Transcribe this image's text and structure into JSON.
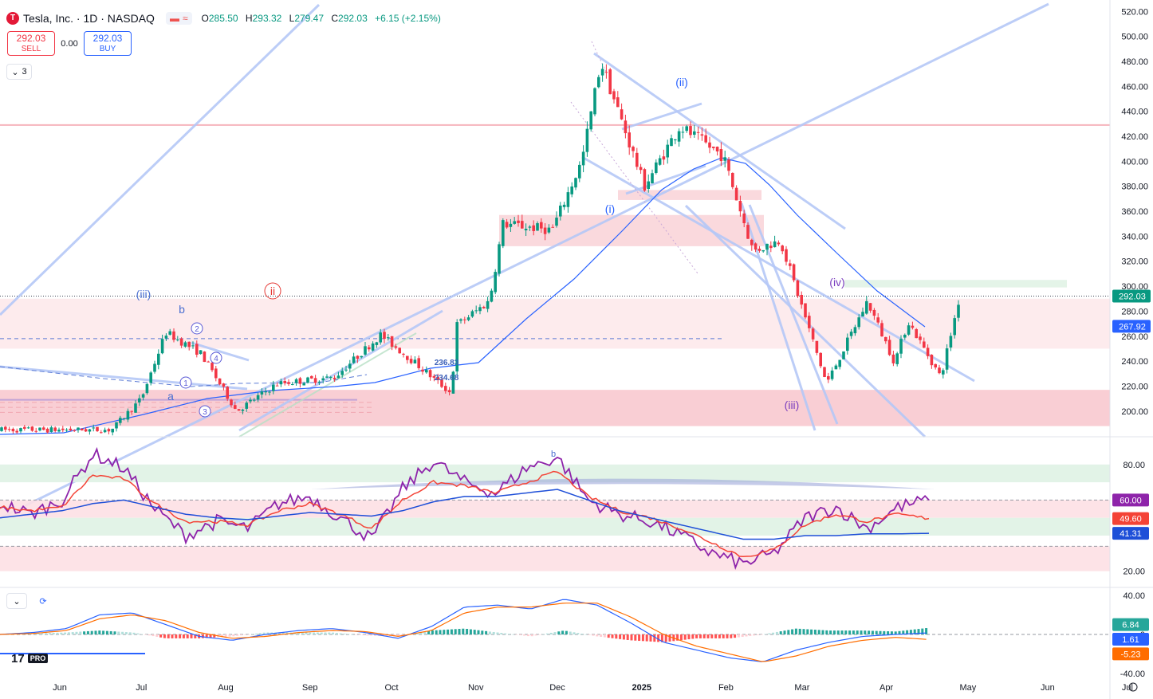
{
  "header": {
    "symbol": "Tesla, Inc. · 1D · NASDAQ",
    "logo_glyph": "T",
    "logo_color": "#e31937",
    "open_label": "O",
    "open": "285.50",
    "high_label": "H",
    "high": "293.32",
    "low_label": "L",
    "low": "279.47",
    "close_label": "C",
    "close": "292.03",
    "change": "+6.15 (+2.15%)"
  },
  "trade": {
    "sell_price": "292.03",
    "sell_label": "SELL",
    "spread": "0.00",
    "buy_price": "292.03",
    "buy_label": "BUY"
  },
  "indicators_toggle": {
    "count": "3",
    "icon": "chevron-down-icon"
  },
  "branding": {
    "logo": "17",
    "badge": "PRO"
  },
  "colors": {
    "up": "#089981",
    "down": "#f23645",
    "ma": "#2962ff",
    "trendline": "#b5c8f7",
    "demand_zone": "#f8c6cc",
    "rsi": "#8e24aa",
    "rsi_ma": "#f44336",
    "rsi_ma2": "#1e4fd8",
    "macd": "#2962ff",
    "signal": "#ff6d00"
  },
  "chart_data": [
    {
      "type": "candlestick",
      "title": "Tesla, Inc. · 1D · NASDAQ",
      "x_tick_labels": [
        "Jun",
        "Jul",
        "Aug",
        "Sep",
        "Oct",
        "Nov",
        "Dec",
        "2025",
        "Feb",
        "Mar",
        "Apr",
        "May",
        "Jun",
        "Jul"
      ],
      "y_tick_labels": [
        "520.00",
        "500.00",
        "480.00",
        "460.00",
        "440.00",
        "420.00",
        "400.00",
        "380.00",
        "360.00",
        "340.00",
        "320.00",
        "300.00",
        "280.00",
        "260.00",
        "240.00",
        "220.00",
        "200.00"
      ],
      "ylim": [
        182,
        524
      ],
      "last_price": 292.03,
      "last_price_label": "292.03",
      "ma_value_label": "267.92",
      "ma_value": 267.92,
      "price_labels": [
        "236.83",
        "234.68"
      ],
      "wave_labels": [
        "(iii)",
        "b",
        "a",
        "ii",
        "(i)",
        "(ii)",
        "(iii)",
        "(iv)",
        "2",
        "4",
        "1",
        "3"
      ],
      "candles_approx": [
        {
          "date": "2024-06-20",
          "c": 185
        },
        {
          "date": "2024-07-01",
          "c": 210
        },
        {
          "date": "2024-07-10",
          "c": 263
        },
        {
          "date": "2024-07-23",
          "c": 246
        },
        {
          "date": "2024-08-05",
          "c": 200
        },
        {
          "date": "2024-08-20",
          "c": 222
        },
        {
          "date": "2024-09-10",
          "c": 227
        },
        {
          "date": "2024-09-27",
          "c": 261
        },
        {
          "date": "2024-10-10",
          "c": 238
        },
        {
          "date": "2024-10-23",
          "c": 214
        },
        {
          "date": "2024-10-25",
          "c": 269
        },
        {
          "date": "2024-11-06",
          "c": 288
        },
        {
          "date": "2024-11-11",
          "c": 350
        },
        {
          "date": "2024-11-29",
          "c": 345
        },
        {
          "date": "2024-12-10",
          "c": 400
        },
        {
          "date": "2024-12-17",
          "c": 480
        },
        {
          "date": "2025-01-02",
          "c": 380
        },
        {
          "date": "2025-01-15",
          "c": 428
        },
        {
          "date": "2025-01-31",
          "c": 404
        },
        {
          "date": "2025-02-11",
          "c": 328
        },
        {
          "date": "2025-02-21",
          "c": 337
        },
        {
          "date": "2025-03-10",
          "c": 222
        },
        {
          "date": "2025-03-25",
          "c": 288
        },
        {
          "date": "2025-04-04",
          "c": 239
        },
        {
          "date": "2025-04-09",
          "c": 272
        },
        {
          "date": "2025-04-21",
          "c": 227
        },
        {
          "date": "2025-04-28",
          "c": 292
        }
      ]
    },
    {
      "type": "line",
      "title": "RSI",
      "y_tick_labels": [
        "80.00",
        "20.00"
      ],
      "ylim": [
        14,
        92
      ],
      "bands": [
        [
          70,
          80
        ],
        [
          50,
          60
        ],
        [
          40,
          50
        ],
        [
          20,
          34
        ]
      ],
      "series": [
        {
          "values_approx": [
            58,
            52,
            60,
            86,
            78,
            55,
            40,
            48,
            44,
            58,
            62,
            50,
            38,
            66,
            82,
            70,
            64,
            78,
            84,
            60,
            52,
            48,
            40,
            30,
            24,
            30,
            50,
            56,
            44,
            56,
            60
          ]
        },
        {
          "values_approx": [
            56,
            54,
            56,
            74,
            72,
            58,
            48,
            48,
            46,
            54,
            58,
            52,
            44,
            60,
            70,
            68,
            64,
            70,
            76,
            62,
            54,
            50,
            44,
            36,
            28,
            32,
            46,
            52,
            48,
            52,
            49.6
          ]
        },
        {
          "values_approx": [
            50,
            52,
            54,
            58,
            60,
            56,
            52,
            50,
            49,
            51,
            53,
            52,
            51,
            54,
            59,
            62,
            62,
            64,
            66,
            60,
            54,
            50,
            46,
            42,
            38,
            38,
            40,
            40,
            41,
            41,
            41.3
          ]
        }
      ],
      "value_labels": [
        "60.00",
        "49.60",
        "41.31"
      ]
    },
    {
      "type": "bar",
      "title": "MACD",
      "y_tick_labels": [
        "40.00",
        "0",
        "-40.00"
      ],
      "ylim": [
        -44,
        44
      ],
      "value_labels": [
        "6.84",
        "1.61",
        "-5.23"
      ],
      "series": [
        {
          "name": "",
          "values_approx": [
            0,
            2,
            6,
            20,
            22,
            10,
            -2,
            -6,
            0,
            4,
            6,
            2,
            -4,
            8,
            28,
            30,
            26,
            36,
            30,
            12,
            -8,
            -16,
            -24,
            -28,
            -16,
            -8,
            -2,
            0,
            1.6
          ]
        },
        {
          "name": "",
          "values_approx": [
            0,
            1,
            4,
            16,
            20,
            14,
            2,
            -4,
            -2,
            2,
            4,
            3,
            -2,
            4,
            22,
            28,
            28,
            32,
            32,
            18,
            0,
            -12,
            -20,
            -28,
            -22,
            -12,
            -6,
            -3,
            -5.2
          ]
        }
      ]
    }
  ]
}
